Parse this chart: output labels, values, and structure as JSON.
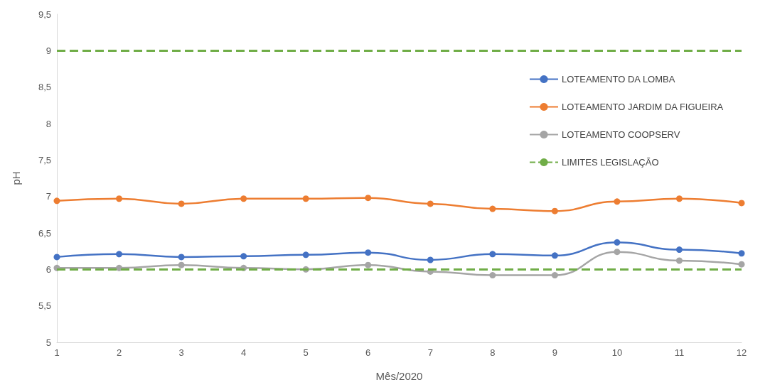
{
  "chart_data": {
    "type": "line",
    "xlabel": "Mês/2020",
    "ylabel": "pH",
    "categories": [
      "1",
      "2",
      "3",
      "4",
      "5",
      "6",
      "7",
      "8",
      "9",
      "10",
      "11",
      "12"
    ],
    "series": [
      {
        "name": "LOTEAMENTO DA LOMBA",
        "color": "#4472c4",
        "values": [
          6.17,
          6.21,
          6.17,
          6.18,
          6.2,
          6.23,
          6.13,
          6.21,
          6.19,
          6.37,
          6.27,
          6.22
        ]
      },
      {
        "name": "LOTEAMENTO JARDIM DA FIGUEIRA",
        "color": "#ed7d31",
        "values": [
          6.94,
          6.97,
          6.9,
          6.97,
          6.97,
          6.98,
          6.9,
          6.83,
          6.8,
          6.93,
          6.97,
          6.91
        ]
      },
      {
        "name": "LOTEAMENTO COOPSERV",
        "color": "#a5a5a5",
        "values": [
          6.02,
          6.02,
          6.06,
          6.02,
          6.0,
          6.06,
          5.97,
          5.92,
          5.92,
          6.24,
          6.12,
          6.07
        ]
      }
    ],
    "ref_lines": [
      {
        "axis": "y",
        "value": 9,
        "label": "LIMITES LEGISLAÇÃO",
        "color": "#70ad47",
        "line_style": "dashed"
      },
      {
        "axis": "y",
        "value": 6,
        "label": null,
        "color": "#70ad47",
        "line_style": "dashed"
      }
    ],
    "ylim": [
      5,
      9.5
    ],
    "yticks": [
      5,
      {
        "value": 5.5,
        "label": "5,5"
      },
      6,
      {
        "value": 6.5,
        "label": "6,5"
      },
      7,
      {
        "value": 7.5,
        "label": "7,5"
      },
      8,
      {
        "value": 8.5,
        "label": "8,5"
      },
      9,
      {
        "value": 9.5,
        "label": "9,5"
      }
    ],
    "grid": false,
    "legend": "right",
    "marker": "circle",
    "line_style": "solid"
  }
}
